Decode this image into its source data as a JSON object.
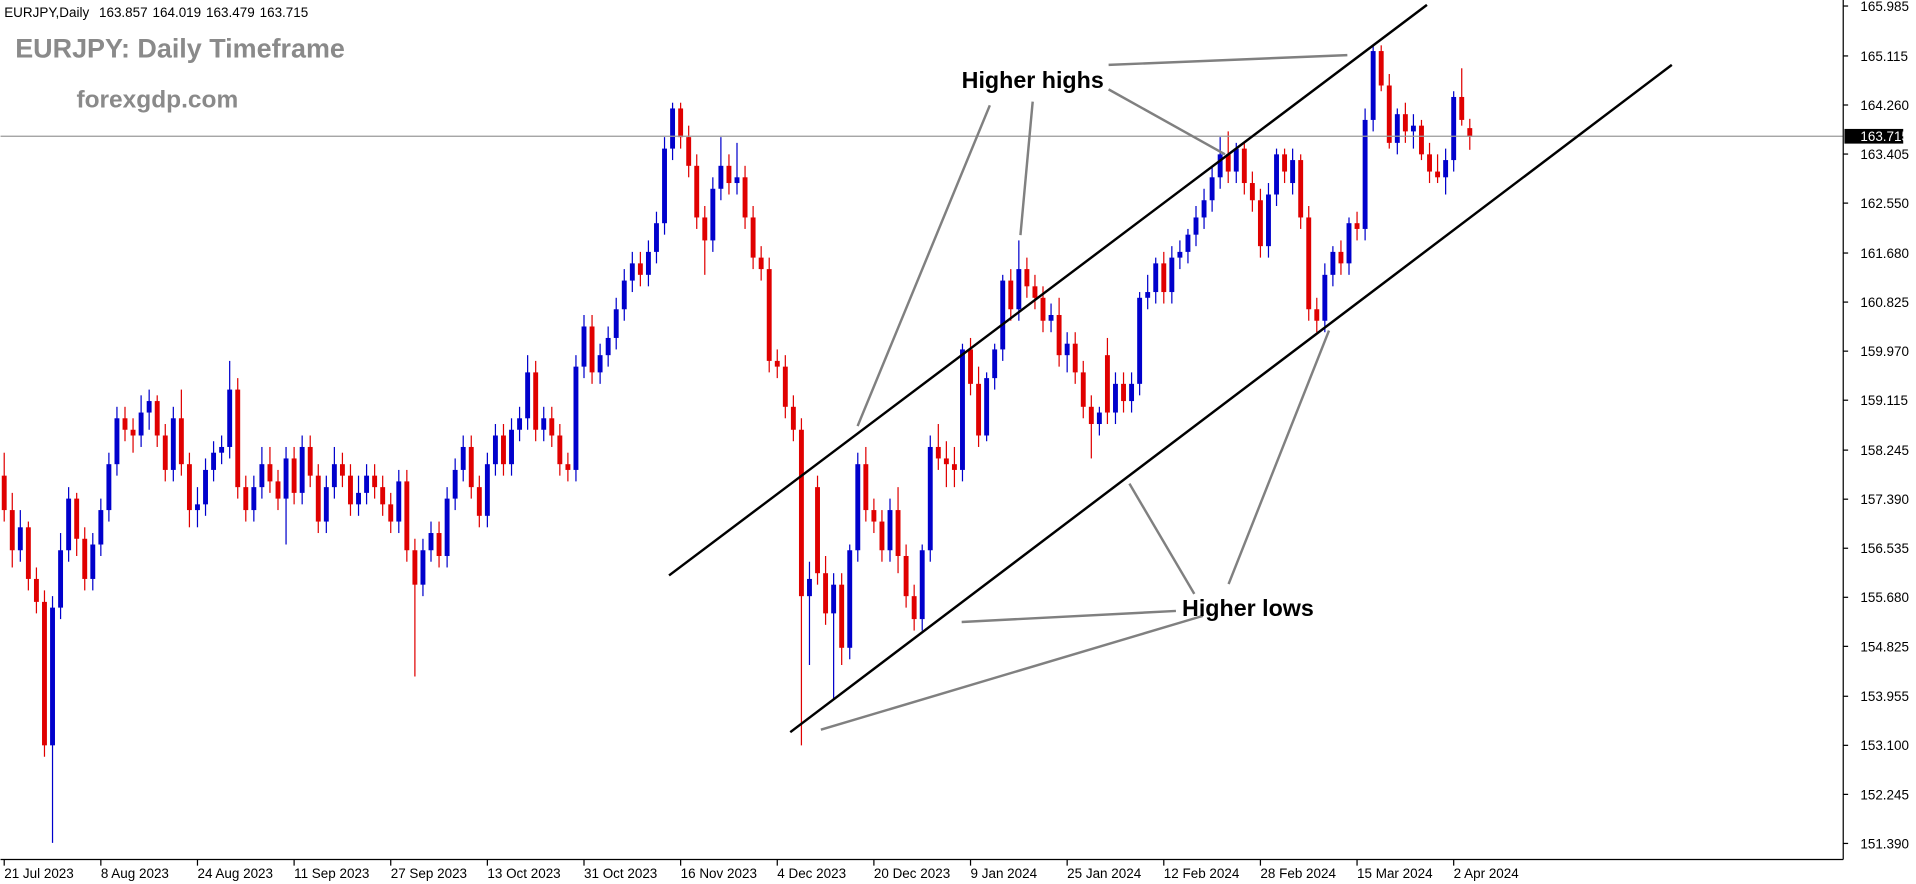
{
  "chart_data": {
    "type": "candlestick",
    "title": "EURJPY: Daily Timeframe",
    "subtitle": "forexgdp.com",
    "symbol": "EURJPY,Daily",
    "annotations": [
      "Higher highs",
      "Higher lows"
    ],
    "up_color": "#0000cc",
    "down_color": "#e00000",
    "grid": false,
    "ylim": [
      151.11,
      166.09
    ],
    "yticks": [
      165.985,
      165.115,
      {
        "value": 164.26,
        "label": "164.260"
      },
      163.405,
      {
        "value": 162.55,
        "label": "162.550"
      },
      {
        "value": 161.68,
        "label": "161.680"
      },
      160.825,
      {
        "value": 159.97,
        "label": "159.970"
      },
      159.115,
      158.245,
      {
        "value": 157.39,
        "label": "157.390"
      },
      156.535,
      {
        "value": 155.68,
        "label": "155.680"
      },
      154.825,
      153.955,
      {
        "value": 153.1,
        "label": "153.100"
      },
      152.245,
      {
        "value": 151.39,
        "label": "151.390"
      }
    ],
    "categories": [
      "21 Jul 2023",
      null,
      null,
      null,
      null,
      null,
      null,
      null,
      null,
      null,
      null,
      null,
      "8 Aug 2023",
      null,
      null,
      null,
      null,
      null,
      null,
      null,
      null,
      null,
      null,
      null,
      "24 Aug 2023",
      null,
      null,
      null,
      null,
      null,
      null,
      null,
      null,
      null,
      null,
      null,
      "11 Sep 2023",
      null,
      null,
      null,
      null,
      null,
      null,
      null,
      null,
      null,
      null,
      null,
      "27 Sep 2023",
      null,
      null,
      null,
      null,
      null,
      null,
      null,
      null,
      null,
      null,
      null,
      "13 Oct 2023",
      null,
      null,
      null,
      null,
      null,
      null,
      null,
      null,
      null,
      null,
      null,
      "31 Oct 2023",
      null,
      null,
      null,
      null,
      null,
      null,
      null,
      null,
      null,
      null,
      null,
      "16 Nov 2023",
      null,
      null,
      null,
      null,
      null,
      null,
      null,
      null,
      null,
      null,
      null,
      "4 Dec 2023",
      null,
      null,
      null,
      null,
      null,
      null,
      null,
      null,
      null,
      null,
      null,
      "20 Dec 2023",
      null,
      null,
      null,
      null,
      null,
      null,
      null,
      null,
      null,
      null,
      null,
      "9 Jan 2024",
      null,
      null,
      null,
      null,
      null,
      null,
      null,
      null,
      null,
      null,
      null,
      "25 Jan 2024",
      null,
      null,
      null,
      null,
      null,
      null,
      null,
      null,
      null,
      null,
      null,
      "12 Feb 2024",
      null,
      null,
      null,
      null,
      null,
      null,
      null,
      null,
      null,
      null,
      null,
      "28 Feb 2024",
      null,
      null,
      null,
      null,
      null,
      null,
      null,
      null,
      null,
      null,
      null,
      "15 Mar 2024",
      null,
      null,
      null,
      null,
      null,
      null,
      null,
      null,
      null,
      null,
      null,
      "2 Apr 2024",
      null,
      null
    ],
    "ohlc": [
      [
        157.8,
        158.2,
        157.0,
        157.2
      ],
      [
        157.2,
        157.5,
        156.2,
        156.5
      ],
      [
        156.5,
        157.2,
        156.3,
        156.9
      ],
      [
        156.9,
        157.0,
        155.8,
        156.0
      ],
      [
        156.0,
        156.2,
        155.4,
        155.6
      ],
      [
        155.6,
        155.8,
        152.9,
        153.1
      ],
      [
        153.1,
        155.7,
        151.4,
        155.5
      ],
      [
        155.5,
        156.8,
        155.3,
        156.5
      ],
      [
        156.5,
        157.6,
        156.3,
        157.4
      ],
      [
        157.4,
        157.5,
        156.4,
        156.7
      ],
      [
        156.7,
        156.9,
        155.8,
        156.0
      ],
      [
        156.0,
        156.8,
        155.8,
        156.6
      ],
      [
        156.6,
        157.4,
        156.4,
        157.2
      ],
      [
        157.2,
        158.2,
        157.0,
        158.0
      ],
      [
        158.0,
        159.0,
        157.8,
        158.8
      ],
      [
        158.8,
        159.0,
        158.4,
        158.6
      ],
      [
        158.6,
        158.8,
        158.2,
        158.5
      ],
      [
        158.5,
        159.2,
        158.3,
        158.9
      ],
      [
        158.9,
        159.3,
        158.6,
        159.1
      ],
      [
        159.1,
        159.2,
        158.3,
        158.5
      ],
      [
        158.5,
        158.7,
        157.7,
        157.9
      ],
      [
        157.9,
        159.0,
        157.7,
        158.8
      ],
      [
        158.8,
        159.3,
        157.8,
        158.0
      ],
      [
        158.0,
        158.2,
        156.9,
        157.2
      ],
      [
        157.2,
        157.6,
        156.9,
        157.3
      ],
      [
        157.3,
        158.1,
        157.1,
        157.9
      ],
      [
        157.9,
        158.4,
        157.7,
        158.2
      ],
      [
        158.2,
        158.5,
        158.0,
        158.3
      ],
      [
        158.3,
        159.8,
        158.1,
        159.3
      ],
      [
        159.3,
        159.5,
        157.4,
        157.6
      ],
      [
        157.6,
        157.8,
        157.0,
        157.2
      ],
      [
        157.2,
        157.8,
        157.0,
        157.6
      ],
      [
        157.6,
        158.3,
        157.4,
        158.0
      ],
      [
        158.0,
        158.3,
        157.5,
        157.7
      ],
      [
        157.7,
        157.9,
        157.2,
        157.4
      ],
      [
        157.4,
        158.3,
        156.6,
        158.1
      ],
      [
        158.1,
        158.3,
        157.3,
        157.5
      ],
      [
        157.5,
        158.5,
        157.3,
        158.3
      ],
      [
        158.3,
        158.5,
        157.6,
        157.8
      ],
      [
        157.8,
        158.0,
        156.8,
        157.0
      ],
      [
        157.0,
        157.8,
        156.8,
        157.6
      ],
      [
        157.6,
        158.3,
        157.4,
        158.0
      ],
      [
        158.0,
        158.2,
        157.6,
        157.8
      ],
      [
        157.8,
        158.0,
        157.1,
        157.3
      ],
      [
        157.3,
        157.8,
        157.1,
        157.5
      ],
      [
        157.5,
        158.0,
        157.3,
        157.8
      ],
      [
        157.8,
        158.0,
        157.4,
        157.6
      ],
      [
        157.6,
        157.8,
        157.1,
        157.3
      ],
      [
        157.3,
        157.5,
        156.8,
        157.0
      ],
      [
        157.0,
        157.9,
        156.8,
        157.7
      ],
      [
        157.7,
        157.9,
        156.3,
        156.5
      ],
      [
        156.5,
        156.7,
        154.3,
        155.9
      ],
      [
        155.9,
        156.7,
        155.7,
        156.5
      ],
      [
        156.5,
        157.0,
        156.3,
        156.8
      ],
      [
        156.8,
        157.0,
        156.2,
        156.4
      ],
      [
        156.4,
        157.6,
        156.2,
        157.4
      ],
      [
        157.4,
        158.1,
        157.2,
        157.9
      ],
      [
        157.9,
        158.5,
        157.7,
        158.3
      ],
      [
        158.3,
        158.5,
        157.4,
        157.6
      ],
      [
        157.6,
        157.8,
        156.9,
        157.1
      ],
      [
        157.1,
        158.2,
        156.9,
        158.0
      ],
      [
        158.0,
        158.7,
        157.8,
        158.5
      ],
      [
        158.5,
        158.7,
        157.8,
        158.0
      ],
      [
        158.0,
        158.8,
        157.8,
        158.6
      ],
      [
        158.6,
        159.0,
        158.4,
        158.8
      ],
      [
        158.8,
        159.9,
        158.6,
        159.6
      ],
      [
        159.6,
        159.8,
        158.4,
        158.6
      ],
      [
        158.6,
        159.0,
        158.4,
        158.8
      ],
      [
        158.8,
        159.0,
        158.3,
        158.5
      ],
      [
        158.5,
        158.7,
        157.8,
        158.0
      ],
      [
        158.0,
        158.2,
        157.7,
        157.9
      ],
      [
        157.9,
        159.9,
        157.7,
        159.7
      ],
      [
        159.7,
        160.6,
        159.5,
        160.4
      ],
      [
        160.4,
        160.6,
        159.4,
        159.6
      ],
      [
        159.6,
        160.1,
        159.4,
        159.9
      ],
      [
        159.9,
        160.4,
        159.7,
        160.2
      ],
      [
        160.2,
        160.9,
        160.0,
        160.7
      ],
      [
        160.7,
        161.4,
        160.5,
        161.2
      ],
      [
        161.2,
        161.7,
        161.0,
        161.5
      ],
      [
        161.5,
        161.7,
        161.1,
        161.3
      ],
      [
        161.3,
        161.9,
        161.1,
        161.7
      ],
      [
        161.7,
        162.4,
        161.5,
        162.2
      ],
      [
        162.2,
        163.7,
        162.0,
        163.5
      ],
      [
        163.5,
        164.3,
        163.3,
        164.2
      ],
      [
        164.2,
        164.3,
        163.5,
        163.7
      ],
      [
        163.7,
        163.9,
        163.0,
        163.2
      ],
      [
        163.2,
        163.4,
        162.1,
        162.3
      ],
      [
        162.3,
        162.5,
        161.3,
        161.9
      ],
      [
        161.9,
        163.0,
        161.7,
        162.8
      ],
      [
        162.8,
        163.7,
        162.6,
        163.2
      ],
      [
        163.2,
        163.4,
        162.7,
        162.9
      ],
      [
        162.9,
        163.6,
        162.7,
        163.0
      ],
      [
        163.0,
        163.2,
        162.1,
        162.3
      ],
      [
        162.3,
        162.5,
        161.4,
        161.6
      ],
      [
        161.6,
        161.8,
        161.2,
        161.4
      ],
      [
        161.4,
        161.6,
        159.6,
        159.8
      ],
      [
        159.8,
        160.0,
        159.5,
        159.7
      ],
      [
        159.7,
        159.9,
        158.8,
        159.0
      ],
      [
        159.0,
        159.2,
        158.4,
        158.6
      ],
      [
        158.6,
        158.8,
        153.1,
        155.7
      ],
      [
        155.7,
        156.3,
        154.5,
        156.0
      ],
      [
        157.6,
        157.8,
        155.9,
        156.1
      ],
      [
        156.1,
        156.4,
        155.2,
        155.4
      ],
      [
        155.4,
        156.1,
        153.9,
        155.9
      ],
      [
        155.9,
        156.1,
        154.5,
        154.8
      ],
      [
        154.8,
        156.6,
        154.6,
        156.5
      ],
      [
        156.5,
        158.2,
        156.3,
        158.0
      ],
      [
        158.0,
        158.3,
        157.0,
        157.2
      ],
      [
        157.2,
        157.4,
        156.8,
        157.0
      ],
      [
        157.0,
        157.2,
        156.3,
        156.5
      ],
      [
        156.5,
        157.4,
        156.3,
        157.2
      ],
      [
        157.2,
        157.6,
        156.1,
        156.4
      ],
      [
        156.4,
        156.6,
        155.5,
        155.7
      ],
      [
        155.7,
        155.9,
        155.1,
        155.3
      ],
      [
        155.3,
        156.6,
        155.1,
        156.5
      ],
      [
        156.5,
        158.5,
        156.3,
        158.3
      ],
      [
        158.3,
        158.7,
        157.9,
        158.1
      ],
      [
        158.1,
        158.4,
        157.6,
        158.0
      ],
      [
        158.0,
        158.3,
        157.6,
        157.9
      ],
      [
        157.9,
        160.1,
        157.7,
        160.0
      ],
      [
        160.0,
        160.2,
        159.2,
        159.4
      ],
      [
        159.4,
        159.7,
        158.3,
        158.5
      ],
      [
        158.5,
        159.6,
        158.4,
        159.5
      ],
      [
        159.5,
        160.1,
        159.3,
        160.0
      ],
      [
        160.0,
        161.3,
        159.8,
        161.2
      ],
      [
        161.2,
        161.4,
        160.5,
        160.7
      ],
      [
        160.7,
        161.9,
        160.5,
        161.4
      ],
      [
        161.4,
        161.6,
        160.9,
        161.1
      ],
      [
        161.1,
        161.3,
        160.7,
        160.9
      ],
      [
        160.9,
        161.1,
        160.3,
        160.5
      ],
      [
        160.5,
        160.8,
        160.3,
        160.6
      ],
      [
        160.6,
        160.9,
        159.7,
        159.9
      ],
      [
        159.9,
        160.3,
        159.6,
        160.1
      ],
      [
        160.1,
        160.3,
        159.4,
        159.6
      ],
      [
        159.6,
        159.8,
        158.8,
        159.0
      ],
      [
        159.0,
        159.2,
        158.1,
        158.7
      ],
      [
        158.7,
        159.0,
        158.5,
        158.9
      ],
      [
        159.9,
        160.2,
        158.7,
        158.9
      ],
      [
        158.9,
        159.6,
        158.7,
        159.4
      ],
      [
        159.4,
        159.6,
        158.9,
        159.1
      ],
      [
        159.1,
        159.6,
        158.9,
        159.4
      ],
      [
        159.4,
        161.0,
        159.2,
        160.9
      ],
      [
        160.9,
        161.3,
        160.7,
        161.0
      ],
      [
        161.0,
        161.6,
        160.8,
        161.5
      ],
      [
        161.5,
        161.7,
        160.8,
        161.0
      ],
      [
        161.0,
        161.8,
        160.8,
        161.6
      ],
      [
        161.6,
        161.9,
        161.4,
        161.7
      ],
      [
        161.7,
        162.1,
        161.5,
        162.0
      ],
      [
        162.0,
        162.5,
        161.8,
        162.3
      ],
      [
        162.3,
        162.8,
        162.1,
        162.6
      ],
      [
        162.6,
        163.2,
        162.4,
        163.0
      ],
      [
        163.0,
        163.7,
        162.8,
        163.4
      ],
      [
        163.4,
        163.8,
        162.9,
        163.1
      ],
      [
        163.1,
        163.6,
        162.9,
        163.5
      ],
      [
        163.5,
        163.6,
        162.7,
        162.9
      ],
      [
        162.9,
        163.1,
        162.4,
        162.6
      ],
      [
        162.6,
        162.8,
        161.6,
        161.8
      ],
      [
        161.8,
        162.9,
        161.6,
        162.7
      ],
      [
        162.7,
        163.5,
        162.5,
        163.4
      ],
      [
        163.4,
        163.5,
        162.9,
        163.1
      ],
      [
        162.9,
        163.5,
        162.7,
        163.3
      ],
      [
        163.3,
        163.4,
        162.1,
        162.3
      ],
      [
        162.3,
        162.5,
        160.5,
        160.7
      ],
      [
        160.7,
        160.9,
        160.3,
        160.5
      ],
      [
        160.5,
        161.5,
        160.3,
        161.3
      ],
      [
        161.3,
        161.8,
        161.1,
        161.7
      ],
      [
        161.7,
        161.9,
        161.3,
        161.5
      ],
      [
        161.5,
        162.3,
        161.3,
        162.2
      ],
      [
        162.2,
        162.4,
        161.9,
        162.1
      ],
      [
        162.1,
        164.2,
        161.9,
        164.0
      ],
      [
        164.0,
        165.3,
        163.8,
        165.2
      ],
      [
        165.2,
        165.3,
        164.5,
        164.6
      ],
      [
        164.6,
        164.8,
        163.5,
        163.6
      ],
      [
        163.6,
        164.2,
        163.4,
        164.1
      ],
      [
        164.1,
        164.3,
        163.6,
        163.8
      ],
      [
        163.8,
        164.1,
        163.5,
        163.9
      ],
      [
        163.9,
        164.0,
        163.3,
        163.4
      ],
      [
        163.4,
        163.6,
        162.9,
        163.1
      ],
      [
        163.1,
        163.4,
        162.9,
        163.0
      ],
      [
        163.0,
        163.5,
        162.7,
        163.3
      ],
      [
        163.3,
        164.5,
        163.1,
        164.4
      ],
      [
        164.4,
        164.9,
        163.9,
        164.0
      ],
      [
        163.857,
        164.019,
        163.479,
        163.715
      ]
    ]
  }
}
